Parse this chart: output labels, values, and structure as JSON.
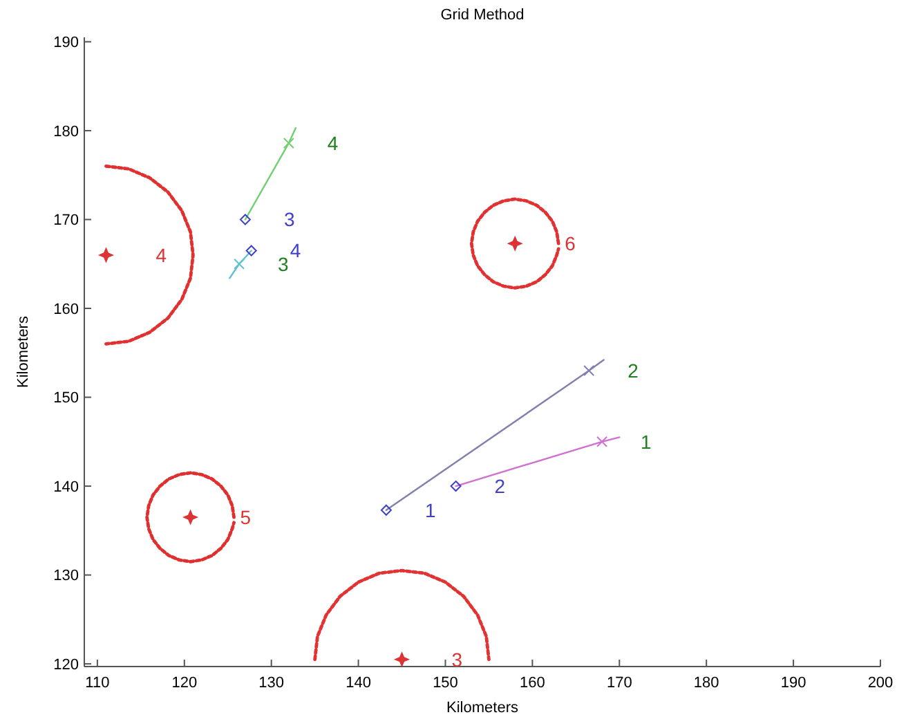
{
  "chart_data": {
    "type": "scatter",
    "title": "Grid Method",
    "xlabel": "Kilometers",
    "ylabel": "Kilometers",
    "xlim": [
      108.5,
      200
    ],
    "ylim": [
      119.7,
      190.5
    ],
    "xticks": [
      110,
      120,
      130,
      140,
      150,
      160,
      170,
      180,
      190,
      200
    ],
    "yticks": [
      120,
      130,
      140,
      150,
      160,
      170,
      180,
      190
    ],
    "grid": false,
    "series": [
      {
        "type": "line",
        "color": "#e03030",
        "line_style": "dotted",
        "marker": "none",
        "x": [
          111,
          113.6,
          116,
          118.1,
          119.7,
          120.7,
          121,
          120.7,
          119.7,
          118.1,
          116,
          113.6,
          111
        ],
        "values": [
          176,
          175.7,
          174.7,
          173.1,
          171,
          168.6,
          166,
          163.4,
          161,
          158.9,
          157.3,
          156.3,
          156
        ]
      },
      {
        "type": "line",
        "color": "#e13131",
        "line_style": "dotted",
        "marker": "none",
        "x": [
          163,
          162.8,
          162.3,
          161.5,
          160.5,
          159.3,
          158,
          156.7,
          155.5,
          154.5,
          153.7,
          153.2,
          153,
          153.2,
          153.7,
          154.5,
          155.5,
          156.7,
          158,
          159.3,
          160.5,
          161.5,
          162.3,
          162.8,
          163
        ],
        "values": [
          167.3,
          168.6,
          169.8,
          170.8,
          171.6,
          172.1,
          172.3,
          172.1,
          171.6,
          170.8,
          169.8,
          168.6,
          167.3,
          166,
          164.8,
          163.8,
          163,
          162.5,
          162.3,
          162.5,
          163,
          163.8,
          164.8,
          166,
          166.7
        ]
      },
      {
        "type": "line",
        "color": "#df2f2f",
        "line_style": "dotted",
        "marker": "none",
        "x": [
          125.7,
          125.5,
          125,
          124.2,
          123.2,
          122,
          120.7,
          119.4,
          118.2,
          117.2,
          116.4,
          115.9,
          115.7,
          115.9,
          116.4,
          117.2,
          118.2,
          119.4,
          120.7,
          122,
          123.2,
          124.2,
          125,
          125.5,
          125.7
        ],
        "values": [
          136.5,
          137.8,
          139,
          140,
          140.8,
          141.3,
          141.5,
          141.3,
          140.8,
          140,
          139,
          137.8,
          136.5,
          135.2,
          134,
          133,
          132.2,
          131.7,
          131.5,
          131.7,
          132.2,
          133,
          134,
          135.2,
          135.9
        ]
      },
      {
        "type": "line",
        "color": "#e23232",
        "line_style": "dotted",
        "marker": "none",
        "x": [
          135,
          135.3,
          136.3,
          137.9,
          140,
          142.4,
          145,
          147.6,
          150,
          152.1,
          153.7,
          154.7,
          155
        ],
        "values": [
          120.5,
          123.1,
          125.5,
          127.6,
          129.2,
          130.2,
          130.5,
          130.2,
          129.2,
          127.6,
          125.5,
          123.1,
          120.5
        ]
      },
      {
        "type": "line",
        "color": "#8080b0",
        "line_style": "solid",
        "marker": "none",
        "x": [
          143.2,
          166.5,
          168.2
        ],
        "values": [
          137.3,
          153,
          154.2
        ]
      },
      {
        "type": "line",
        "color": "#d070d0",
        "line_style": "solid",
        "marker": "none",
        "x": [
          151.2,
          168,
          170
        ],
        "values": [
          140,
          145,
          145.5
        ]
      },
      {
        "type": "line",
        "color": "#70d070",
        "line_style": "solid",
        "marker": "none",
        "x": [
          127,
          132,
          132.8
        ],
        "values": [
          170,
          178.6,
          180.3
        ]
      },
      {
        "type": "line",
        "color": "#60c0d0",
        "line_style": "solid",
        "marker": "none",
        "x": [
          127.7,
          126.3,
          125.2
        ],
        "values": [
          166.5,
          165,
          163.4
        ]
      },
      {
        "color": "#4040c8",
        "marker": "diamond",
        "x": [
          143.2,
          151.2,
          127,
          127.7
        ],
        "values": [
          137.3,
          140,
          170,
          166.5
        ]
      },
      {
        "color": "#208020",
        "colors": [
          "#8080b0",
          "#d070d0",
          "#70d070",
          "#60c0d0"
        ],
        "marker": "cross",
        "x": [
          166.5,
          168,
          132,
          126.3
        ],
        "values": [
          153,
          145,
          178.6,
          165
        ]
      },
      {
        "color": "#dc3434",
        "marker": "star",
        "x": [
          145,
          111,
          120.7,
          158
        ],
        "values": [
          120.5,
          166,
          136.5,
          167.3
        ]
      }
    ],
    "annotations": [
      {
        "text": "4",
        "x": 111,
        "y": 166
      },
      {
        "text": "6",
        "x": 158,
        "y": 167.3
      },
      {
        "text": "5",
        "x": 120.7,
        "y": 136.5
      },
      {
        "text": "3",
        "x": 145,
        "y": 120.5
      },
      {
        "text": "1",
        "x": 143.2,
        "y": 137.3
      },
      {
        "text": "2",
        "x": 151.2,
        "y": 140
      },
      {
        "text": "3",
        "x": 127,
        "y": 170
      },
      {
        "text": "4",
        "x": 127.7,
        "y": 166.5
      },
      {
        "text": "1",
        "x": 168,
        "y": 145
      },
      {
        "text": "2",
        "x": 166.5,
        "y": 153
      },
      {
        "text": "4",
        "x": 132,
        "y": 178.6
      },
      {
        "text": "3",
        "x": 126.3,
        "y": 165
      }
    ]
  }
}
